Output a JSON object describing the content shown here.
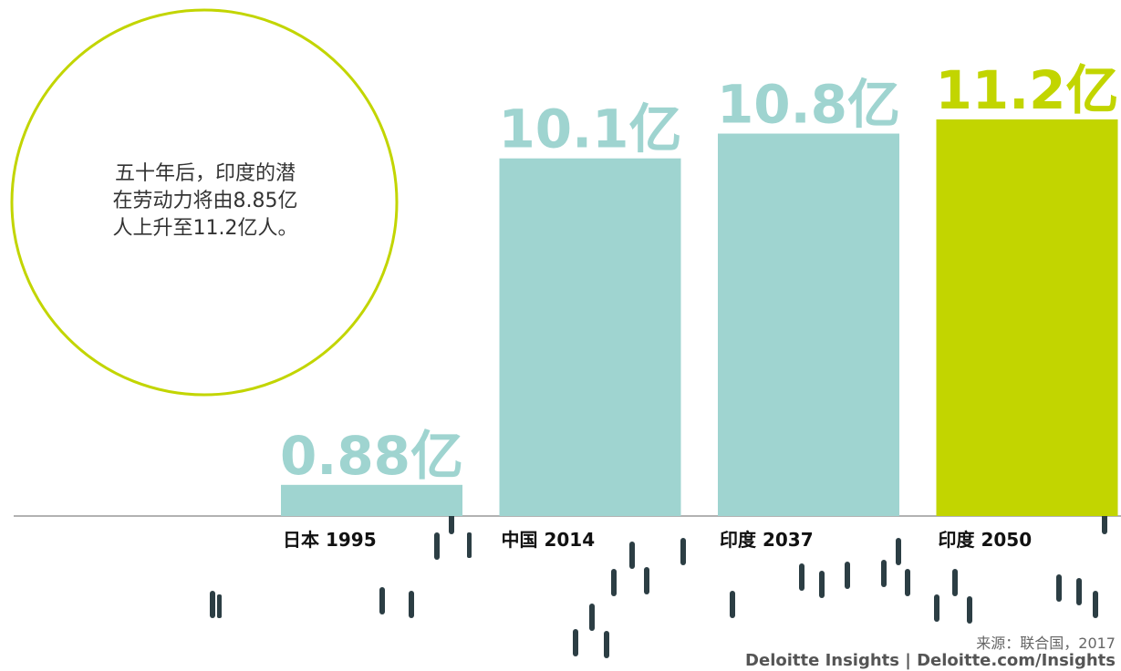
{
  "chart_data": {
    "type": "bar",
    "annotation_lines": [
      "五十年后，印度的潜",
      "在劳动力将由8.85亿",
      "人上升至11.2亿人。"
    ],
    "categories": [
      "日本 1995",
      "中国 2014",
      "印度 2037",
      "印度 2050"
    ],
    "values": [
      0.88,
      10.1,
      10.8,
      11.2
    ],
    "value_labels": [
      "0.88亿",
      "10.1亿",
      "10.8亿",
      "11.2亿"
    ],
    "colors": [
      "#9fd4d0",
      "#9fd4d0",
      "#9fd4d0",
      "#c2d500"
    ],
    "source": "来源：联合国，2017",
    "footer": "Deloitte Insights | Deloitte.com/Insights"
  }
}
